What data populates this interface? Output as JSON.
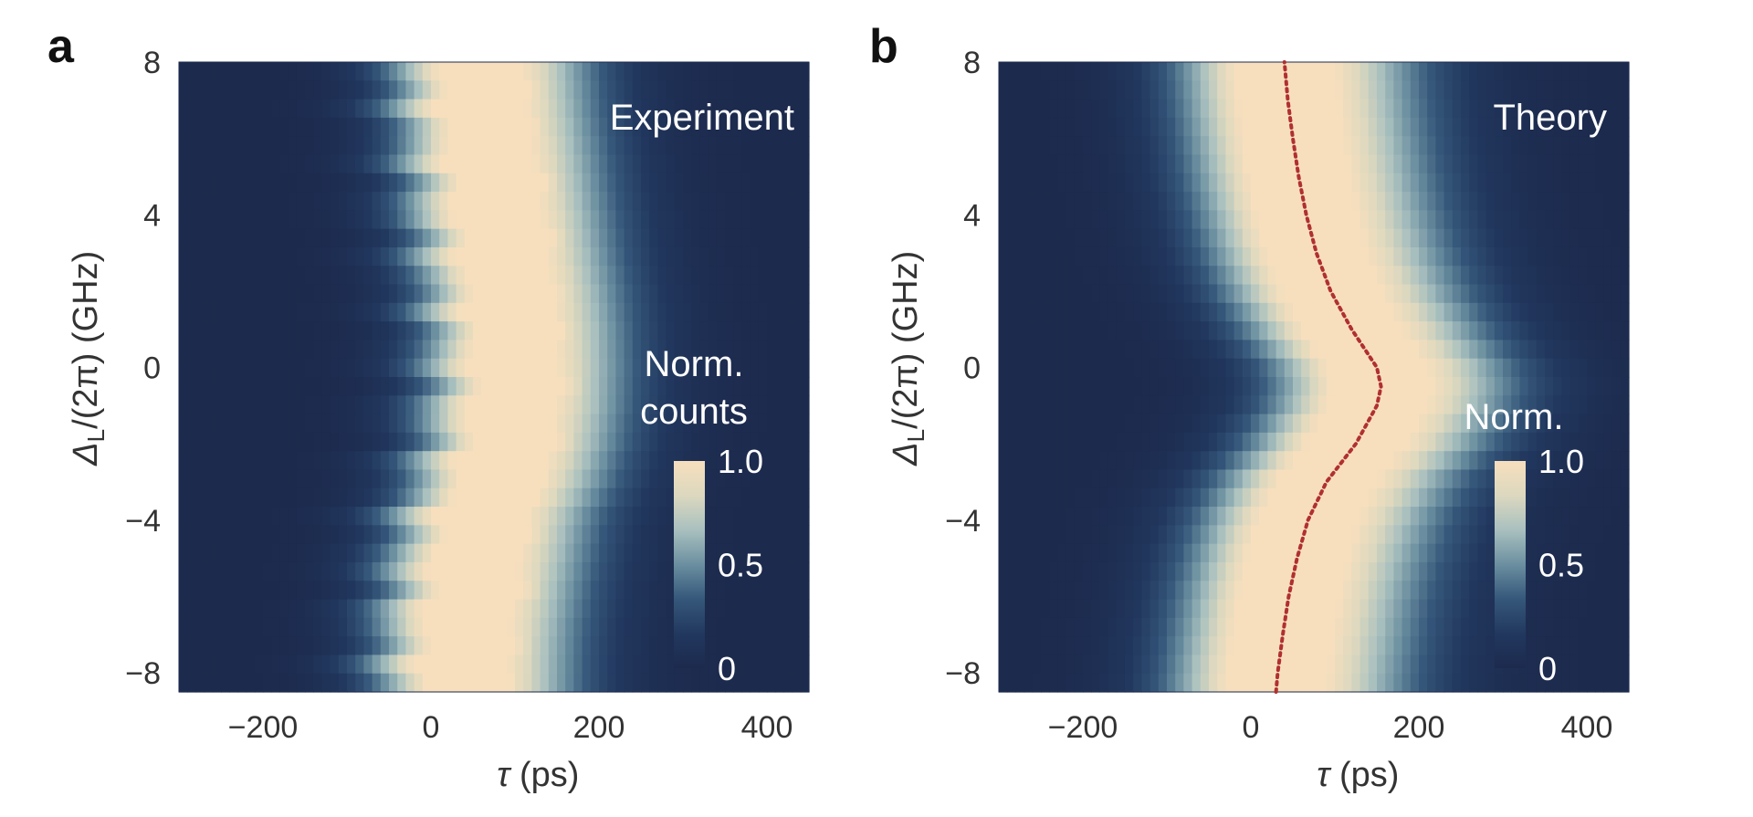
{
  "figure_caption_labels": {
    "a": "a",
    "b": "b"
  },
  "chart_data": [
    {
      "type": "heatmap",
      "panel_label": "a",
      "title": "Experiment",
      "xlabel_symbol": "τ",
      "xlabel_unit": "(ps)",
      "ylabel_symbol": "Δ",
      "ylabel_subscript": "L",
      "ylabel_rest": "/(2π) (GHz)",
      "xlim": [
        -300,
        450
      ],
      "ylim": [
        -8.5,
        8
      ],
      "x_ticks": [
        -200,
        0,
        200,
        400
      ],
      "x_tick_labels": [
        "−200",
        "0",
        "200",
        "400"
      ],
      "y_ticks": [
        -8,
        -4,
        0,
        4,
        8
      ],
      "y_tick_labels": [
        "−8",
        "−4",
        "0",
        "4",
        "8"
      ],
      "colorbar": {
        "title_lines": [
          "Norm.",
          "counts"
        ],
        "ticks": [
          0,
          0.5,
          1.0
        ],
        "tick_labels": [
          "0",
          "0.5",
          "1.0"
        ]
      },
      "colormap": [
        "#1c2a4d",
        "#22385f",
        "#35577a",
        "#6b8fa0",
        "#a9c0bf",
        "#dcd8bf",
        "#f7dfbd"
      ],
      "peak_position_ps": [
        {
          "detuning": -8,
          "tau": 40
        },
        {
          "detuning": -7,
          "tau": 42
        },
        {
          "detuning": -6,
          "tau": 48
        },
        {
          "detuning": -5,
          "tau": 55
        },
        {
          "detuning": -4,
          "tau": 62
        },
        {
          "detuning": -3,
          "tau": 80
        },
        {
          "detuning": -2,
          "tau": 92
        },
        {
          "detuning": -1,
          "tau": 98
        },
        {
          "detuning": 0,
          "tau": 100
        },
        {
          "detuning": 1,
          "tau": 98
        },
        {
          "detuning": 2,
          "tau": 93
        },
        {
          "detuning": 3,
          "tau": 86
        },
        {
          "detuning": 4,
          "tau": 80
        },
        {
          "detuning": 5,
          "tau": 74
        },
        {
          "detuning": 6,
          "tau": 68
        },
        {
          "detuning": 7,
          "tau": 62
        },
        {
          "detuning": 8,
          "tau": 58
        }
      ],
      "peak_width_ps": 110,
      "fit_curve": null
    },
    {
      "type": "heatmap",
      "panel_label": "b",
      "title": "Theory",
      "xlabel_symbol": "τ",
      "xlabel_unit": "(ps)",
      "ylabel_symbol": "Δ",
      "ylabel_subscript": "L",
      "ylabel_rest": "/(2π) (GHz)",
      "xlim": [
        -300,
        450
      ],
      "ylim": [
        -8.5,
        8
      ],
      "x_ticks": [
        -200,
        0,
        200,
        400
      ],
      "x_tick_labels": [
        "−200",
        "0",
        "200",
        "400"
      ],
      "y_ticks": [
        -8,
        -4,
        0,
        4,
        8
      ],
      "y_tick_labels": [
        "−8",
        "−4",
        "0",
        "4",
        "8"
      ],
      "colorbar": {
        "title_lines": [
          "Norm."
        ],
        "ticks": [
          0,
          0.5,
          1.0
        ],
        "tick_labels": [
          "0",
          "0.5",
          "1.0"
        ]
      },
      "colormap": [
        "#1c2a4d",
        "#22385f",
        "#35577a",
        "#6b8fa0",
        "#a9c0bf",
        "#dcd8bf",
        "#f7dfbd"
      ],
      "peak_position_ps": [
        {
          "detuning": -8.5,
          "tau": 30
        },
        {
          "detuning": -8,
          "tau": 32
        },
        {
          "detuning": -7,
          "tau": 38
        },
        {
          "detuning": -6,
          "tau": 45
        },
        {
          "detuning": -5,
          "tau": 55
        },
        {
          "detuning": -4,
          "tau": 68
        },
        {
          "detuning": -3,
          "tau": 90
        },
        {
          "detuning": -2,
          "tau": 125
        },
        {
          "detuning": -1,
          "tau": 150
        },
        {
          "detuning": -0.5,
          "tau": 155
        },
        {
          "detuning": 0,
          "tau": 150
        },
        {
          "detuning": 1,
          "tau": 120
        },
        {
          "detuning": 2,
          "tau": 95
        },
        {
          "detuning": 3,
          "tau": 78
        },
        {
          "detuning": 4,
          "tau": 66
        },
        {
          "detuning": 5,
          "tau": 57
        },
        {
          "detuning": 6,
          "tau": 50
        },
        {
          "detuning": 7,
          "tau": 44
        },
        {
          "detuning": 8,
          "tau": 40
        }
      ],
      "peak_width_ps": 130,
      "fit_curve": {
        "style": "dotted",
        "color": "#b03030",
        "follows": "peak_position_ps"
      }
    }
  ]
}
